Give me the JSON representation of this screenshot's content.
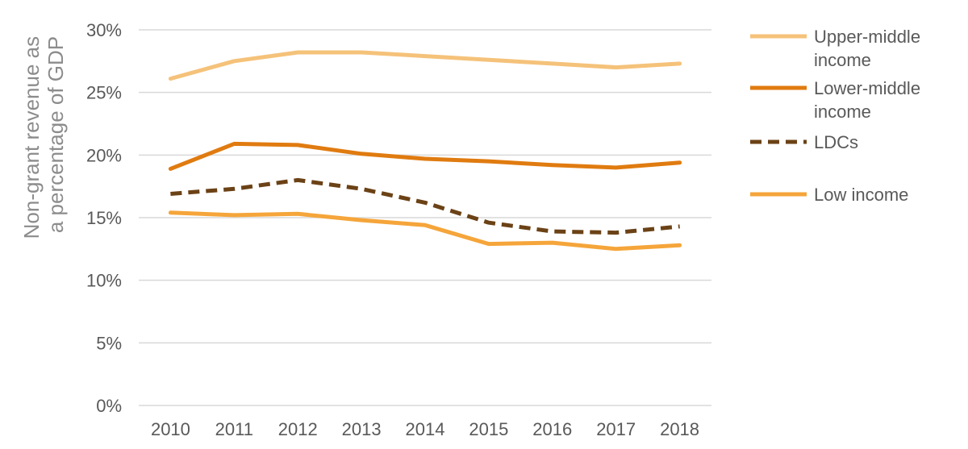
{
  "chart_data": {
    "type": "line",
    "title": "",
    "xlabel": "",
    "ylabel": "Non-grant revenue as a percentage of GDP",
    "ylabel_lines": [
      "Non-grant revenue as",
      "a percentage of GDP"
    ],
    "x": [
      "2010",
      "2011",
      "2012",
      "2013",
      "2014",
      "2015",
      "2016",
      "2017",
      "2018"
    ],
    "ylim": [
      0,
      30
    ],
    "yticks": [
      0,
      5,
      10,
      15,
      20,
      25,
      30
    ],
    "ytick_labels": [
      "0%",
      "5%",
      "10%",
      "15%",
      "20%",
      "25%",
      "30%"
    ],
    "grid": true,
    "legend_position": "right",
    "series": [
      {
        "name": "Upper-middle income",
        "legend_lines": [
          "Upper-middle",
          "income"
        ],
        "color": "#f5c27a",
        "dash": false,
        "values": [
          26.1,
          27.5,
          28.2,
          28.2,
          27.9,
          27.6,
          27.3,
          27.0,
          27.3
        ]
      },
      {
        "name": "Lower-middle income",
        "legend_lines": [
          "Lower-middle",
          "income"
        ],
        "color": "#e07b10",
        "dash": false,
        "values": [
          18.9,
          20.9,
          20.8,
          20.1,
          19.7,
          19.5,
          19.2,
          19.0,
          19.4
        ]
      },
      {
        "name": "LDCs",
        "legend_lines": [
          "LDCs"
        ],
        "color": "#6b4216",
        "dash": true,
        "values": [
          16.9,
          17.3,
          18.0,
          17.3,
          16.2,
          14.6,
          13.9,
          13.8,
          14.3
        ]
      },
      {
        "name": "Low income",
        "legend_lines": [
          "Low income"
        ],
        "color": "#f5a53a",
        "dash": false,
        "values": [
          15.4,
          15.2,
          15.3,
          14.8,
          14.4,
          12.9,
          13.0,
          12.5,
          12.8
        ]
      }
    ]
  }
}
